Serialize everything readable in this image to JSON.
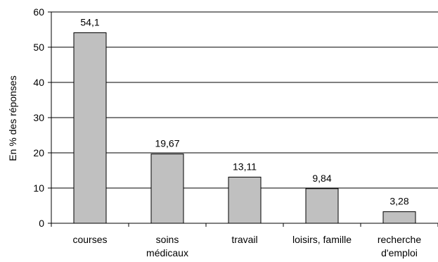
{
  "chart_data": {
    "type": "bar",
    "categories": [
      [
        "courses"
      ],
      [
        "soins",
        "médicaux"
      ],
      [
        "travail"
      ],
      [
        "loisirs, famille"
      ],
      [
        "recherche",
        "d'emploi"
      ]
    ],
    "values": [
      54.1,
      19.67,
      13.11,
      9.84,
      3.28
    ],
    "value_labels": [
      "54,1",
      "19,67",
      "13,11",
      "9,84",
      "3,28"
    ],
    "ylabel": "En % des réponses",
    "ylim": [
      0,
      60
    ],
    "yticks": [
      0,
      10,
      20,
      30,
      40,
      50,
      60
    ],
    "grid": true,
    "bar_color": "#c0c0c0",
    "bar_edge_color": "#000000"
  }
}
